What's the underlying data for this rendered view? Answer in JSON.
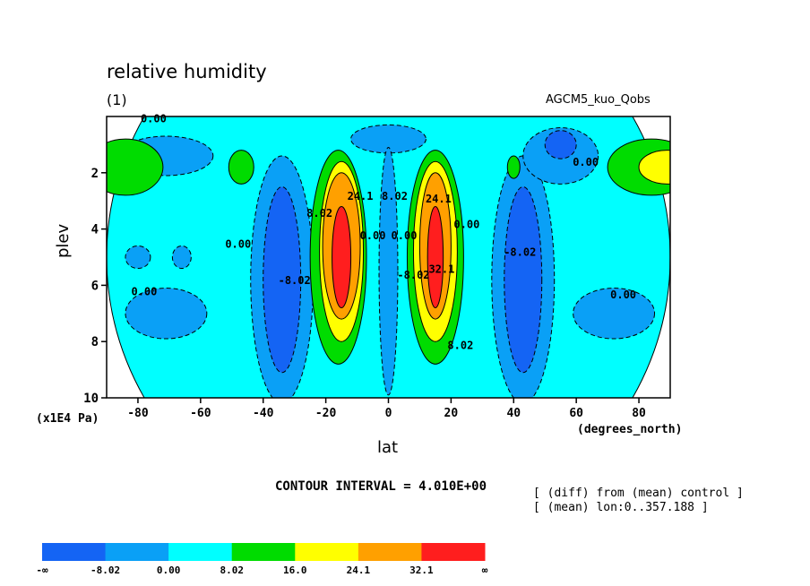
{
  "header": {
    "title": "relative humidity",
    "subtitle": "(1)",
    "model_label": "AGCM5_kuo_Qobs"
  },
  "footer": {
    "contour_interval": "CONTOUR INTERVAL = 4.010E+00",
    "note_diff": "[ (diff) from (mean) control ]",
    "note_mean": "[ (mean) lon:0..357.188 ]"
  },
  "chart_data": {
    "type": "heatmap",
    "title": "relative humidity",
    "xlabel": "lat",
    "ylabel": "plev",
    "x_units": "(degrees_north)",
    "y_units": "(x1E4 Pa)",
    "xlim": [
      -90,
      90
    ],
    "ylim": [
      10,
      0
    ],
    "x_ticks": [
      -80,
      -60,
      -40,
      -20,
      0,
      20,
      40,
      60,
      80
    ],
    "y_ticks": [
      2,
      4,
      6,
      8,
      10
    ],
    "contour_interval": 4.01,
    "colorbar": {
      "labels": [
        "-∞",
        "-8.02",
        "0.00",
        "8.02",
        "16.0",
        "24.1",
        "32.1",
        "∞"
      ],
      "colors": [
        "#1464f4",
        "#0aa0f6",
        "#00ffff",
        "#00dc00",
        "#ffff00",
        "#ffa000",
        "#ff1e1e"
      ]
    },
    "contour_labels": [
      {
        "text": "0.00",
        "x": -75,
        "y": 0.05
      },
      {
        "text": "0.00",
        "x": -78,
        "y": 6.2
      },
      {
        "text": "0.00",
        "x": -48,
        "y": 4.5
      },
      {
        "text": "-8.02",
        "x": -30,
        "y": 5.8
      },
      {
        "text": "8.02",
        "x": -22,
        "y": 3.4
      },
      {
        "text": "24.1",
        "x": -9,
        "y": 2.8
      },
      {
        "text": "8.02",
        "x": 2,
        "y": 2.8
      },
      {
        "text": "0.00",
        "x": -5,
        "y": 4.2
      },
      {
        "text": "0.00",
        "x": 5,
        "y": 4.2
      },
      {
        "text": "-8.02",
        "x": 8,
        "y": 5.6
      },
      {
        "text": "32.1",
        "x": 17,
        "y": 5.4
      },
      {
        "text": "24.1",
        "x": 16,
        "y": 2.9
      },
      {
        "text": "0.00",
        "x": 25,
        "y": 3.8
      },
      {
        "text": "8.02",
        "x": 23,
        "y": 8.1
      },
      {
        "text": "-8.02",
        "x": 42,
        "y": 4.8
      },
      {
        "text": "0.00",
        "x": 63,
        "y": 1.6
      },
      {
        "text": "0.00",
        "x": 75,
        "y": 6.3
      }
    ],
    "regions": [
      {
        "class": 2,
        "x": 0,
        "y": 5,
        "rx": 90,
        "ry": 10
      },
      {
        "class": 1,
        "x": -34,
        "y": 5.8,
        "rx": 10,
        "ry": 4.4
      },
      {
        "class": 0,
        "x": -34,
        "y": 5.8,
        "rx": 6,
        "ry": 3.3
      },
      {
        "class": 1,
        "x": 43,
        "y": 5.8,
        "rx": 10,
        "ry": 4.4
      },
      {
        "class": 0,
        "x": 43,
        "y": 5.8,
        "rx": 6,
        "ry": 3.3
      },
      {
        "class": 1,
        "x": -71,
        "y": 1.4,
        "rx": 15,
        "ry": 0.7
      },
      {
        "class": 1,
        "x": -71,
        "y": 7.0,
        "rx": 13,
        "ry": 0.9
      },
      {
        "class": 1,
        "x": 72,
        "y": 7.0,
        "rx": 13,
        "ry": 0.9
      },
      {
        "class": 1,
        "x": 55,
        "y": 1.4,
        "rx": 12,
        "ry": 1.0
      },
      {
        "class": 0,
        "x": 55,
        "y": 1.0,
        "rx": 5,
        "ry": 0.5
      },
      {
        "class": 1,
        "x": -80,
        "y": 5.0,
        "rx": 4,
        "ry": 0.4
      },
      {
        "class": 1,
        "x": -66,
        "y": 5.0,
        "rx": 3,
        "ry": 0.4
      },
      {
        "class": 1,
        "x": 0,
        "y": 0.8,
        "rx": 12,
        "ry": 0.5
      },
      {
        "class": 1,
        "x": 0,
        "y": 5.5,
        "rx": 3,
        "ry": 4.4
      },
      {
        "class": 3,
        "x": -84,
        "y": 1.8,
        "rx": 12,
        "ry": 1.0
      },
      {
        "class": 3,
        "x": 84,
        "y": 1.8,
        "rx": 14,
        "ry": 1.0
      },
      {
        "class": 4,
        "x": 89,
        "y": 1.8,
        "rx": 9,
        "ry": 0.6
      },
      {
        "class": 3,
        "x": -47,
        "y": 1.8,
        "rx": 4,
        "ry": 0.6
      },
      {
        "class": 3,
        "x": 40,
        "y": 1.8,
        "rx": 2,
        "ry": 0.4
      },
      {
        "class": 3,
        "x": -16,
        "y": 5.0,
        "rx": 9,
        "ry": 3.8
      },
      {
        "class": 4,
        "x": -15,
        "y": 4.8,
        "rx": 7,
        "ry": 3.2
      },
      {
        "class": 5,
        "x": -15,
        "y": 4.6,
        "rx": 6,
        "ry": 2.6
      },
      {
        "class": 6,
        "x": -15,
        "y": 5.0,
        "rx": 3,
        "ry": 1.8
      },
      {
        "class": 3,
        "x": 15,
        "y": 5.0,
        "rx": 9,
        "ry": 3.8
      },
      {
        "class": 4,
        "x": 15,
        "y": 4.8,
        "rx": 7,
        "ry": 3.2
      },
      {
        "class": 5,
        "x": 15,
        "y": 4.6,
        "rx": 5,
        "ry": 2.6
      },
      {
        "class": 6,
        "x": 15,
        "y": 5.0,
        "rx": 2.5,
        "ry": 1.8
      }
    ]
  }
}
